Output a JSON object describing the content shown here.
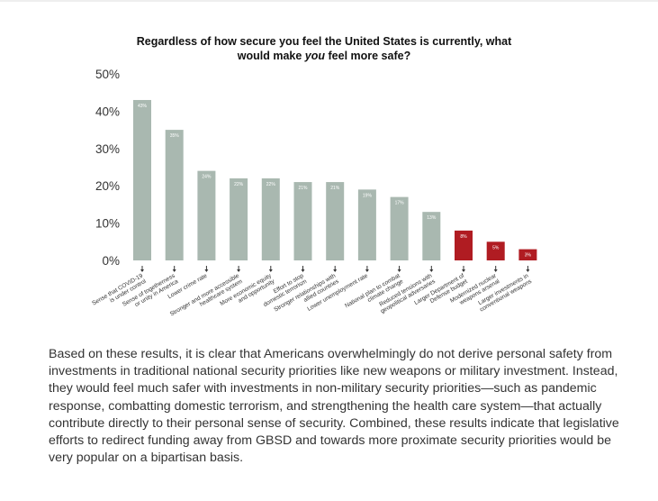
{
  "chart_data": {
    "type": "bar",
    "title_line1": "Regardless of how secure you feel the United States is currently, what",
    "title_line2_pre": "would make ",
    "title_line2_em": "you",
    "title_line2_post": " feel more safe?",
    "ylim": [
      0,
      50
    ],
    "yticks": [
      "50%",
      "40%",
      "30%",
      "20%",
      "10%",
      "0%"
    ],
    "ytick_values": [
      50,
      40,
      30,
      20,
      10,
      0
    ],
    "grid": false,
    "categories": [
      [
        "Sense that COVID-19",
        "is under control"
      ],
      [
        "Sense of togetherness",
        "or unity in America"
      ],
      [
        "Lower crime rate"
      ],
      [
        "Stronger and more accessible",
        "healthcare system"
      ],
      [
        "More economic equity",
        "and opportunity"
      ],
      [
        "Effort to stop",
        "domestic terrorism"
      ],
      [
        "Stronger relationships with",
        "allied countries"
      ],
      [
        "Lower unemployment rate"
      ],
      [
        "National plan to combat",
        "climate change"
      ],
      [
        "Reduced tensions with",
        "geopolitical adversaries"
      ],
      [
        "Larger Department of",
        "Defense budget"
      ],
      [
        "Modernized nuclear",
        "weapons arsenal"
      ],
      [
        "Larger investments in",
        "conventional weapons"
      ]
    ],
    "values": [
      43,
      35,
      24,
      22,
      22,
      21,
      21,
      19,
      17,
      13,
      8,
      5,
      3
    ],
    "data_labels": [
      "43%",
      "35%",
      "24%",
      "22%",
      "22%",
      "21%",
      "21%",
      "19%",
      "17%",
      "13%",
      "8%",
      "5%",
      "3%"
    ],
    "bar_colors": [
      "#a9b8b0",
      "#a9b8b0",
      "#a9b8b0",
      "#a9b8b0",
      "#a9b8b0",
      "#a9b8b0",
      "#a9b8b0",
      "#a9b8b0",
      "#a9b8b0",
      "#a9b8b0",
      "#b01c22",
      "#b01c22",
      "#b01c22"
    ]
  },
  "body_text": "Based on these results, it is clear that Americans overwhelmingly do not derive personal safety from investments in traditional national security priorities like new weapons or military investment. Instead, they would feel much safer with investments in non-military security priorities—such as pandemic response, combatting domestic terrorism, and strengthening the health care system—that actually contribute directly to their personal sense of security. Combined, these results indicate that legislative efforts to redirect funding away from GBSD and towards more proximate security priorities would be very popular on a bipartisan basis."
}
